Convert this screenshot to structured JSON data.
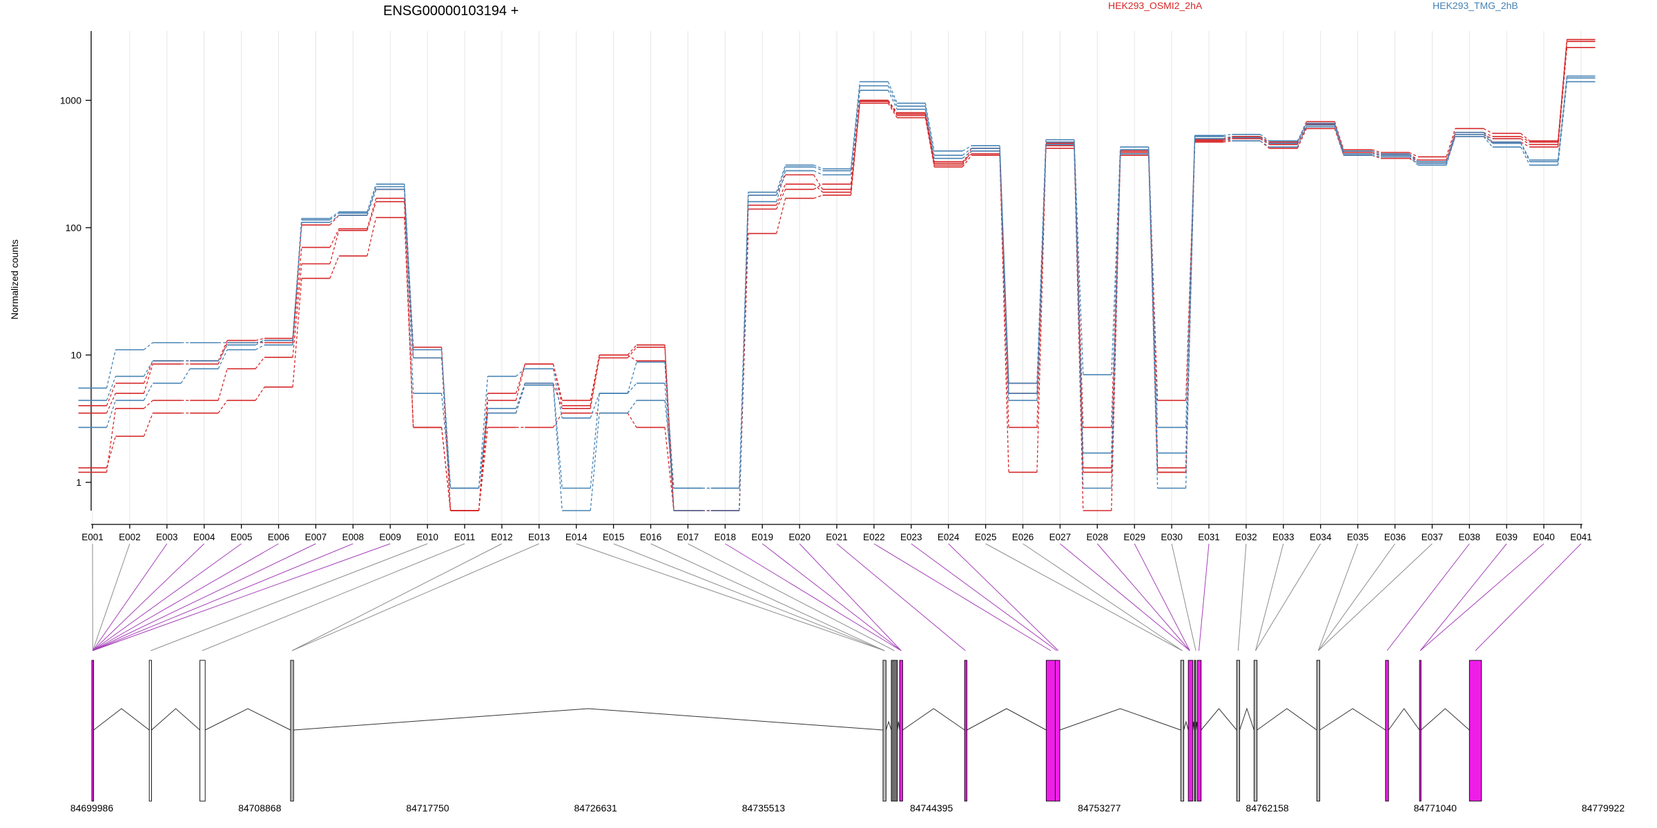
{
  "chart_data": {
    "type": "line",
    "title": "ENSG00000103194 +",
    "ylabel": "Normalized counts",
    "yscale": "log",
    "ylim": [
      0.6,
      3500
    ],
    "y_ticks": [
      "1",
      "10",
      "100",
      "1000"
    ],
    "grid": "vertical",
    "legend_position": "top",
    "categories": [
      "E001",
      "E002",
      "E003",
      "E004",
      "E005",
      "E006",
      "E007",
      "E008",
      "E009",
      "E010",
      "E011",
      "E012",
      "E013",
      "E014",
      "E015",
      "E016",
      "E017",
      "E018",
      "E019",
      "E020",
      "E021",
      "E022",
      "E023",
      "E024",
      "E025",
      "E026",
      "E027",
      "E028",
      "E029",
      "E030",
      "E031",
      "E032",
      "E033",
      "E034",
      "E035",
      "E036",
      "E037",
      "E038",
      "E039",
      "E040",
      "E041"
    ],
    "series": [
      {
        "name": "HEK293_OSMI2_2hA",
        "color": "#d62728",
        "group": "OSMI2",
        "values": [
          1.3,
          2.3,
          3.5,
          3.5,
          4.4,
          5.6,
          40,
          60,
          120,
          2.7,
          0.6,
          2.7,
          2.7,
          3.5,
          3.5,
          2.7,
          0.6,
          0.6,
          90,
          170,
          180,
          950,
          730,
          300,
          370,
          1.2,
          420,
          0.6,
          370,
          1.2,
          470,
          480,
          420,
          600,
          370,
          350,
          320,
          520,
          470,
          430,
          2600
        ]
      },
      {
        "name": "",
        "color": "#d62728",
        "group": "OSMI2",
        "values": [
          1.2,
          3.8,
          4.4,
          4.4,
          7.8,
          9.6,
          52,
          95,
          160,
          2.7,
          0.6,
          3.5,
          6,
          3.8,
          9.5,
          11.5,
          0.6,
          0.6,
          140,
          200,
          220,
          1000,
          800,
          330,
          380,
          2.7,
          440,
          2.7,
          390,
          4.4,
          480,
          500,
          450,
          620,
          390,
          370,
          330,
          540,
          500,
          450,
          2900
        ]
      },
      {
        "name": "",
        "color": "#d62728",
        "group": "OSMI2",
        "values": [
          3.5,
          5,
          8.5,
          8.5,
          12.5,
          12.5,
          70,
          98,
          170,
          9.5,
          0.6,
          4.4,
          8.5,
          4.4,
          10,
          9,
          0.6,
          0.6,
          150,
          220,
          190,
          980,
          760,
          310,
          400,
          5,
          460,
          1.3,
          400,
          1.3,
          490,
          510,
          460,
          650,
          400,
          380,
          340,
          560,
          520,
          470,
          3000
        ]
      },
      {
        "name": "",
        "color": "#d62728",
        "group": "OSMI2",
        "values": [
          4,
          6,
          9,
          9,
          13,
          13.5,
          105,
          125,
          200,
          11.5,
          0.6,
          5,
          8.5,
          4,
          10,
          12,
          0.6,
          0.6,
          180,
          260,
          200,
          1000,
          780,
          320,
          420,
          6,
          470,
          1.2,
          410,
          1.2,
          500,
          520,
          470,
          680,
          410,
          390,
          360,
          600,
          550,
          480,
          3000
        ]
      },
      {
        "name": "HEK293_TMG_2hB",
        "color": "#4682b4",
        "group": "TMG",
        "values": [
          2.7,
          4.4,
          6,
          7.8,
          11,
          12,
          110,
          125,
          200,
          5,
          0.9,
          3.5,
          5.8,
          0.6,
          3.5,
          4.4,
          0.9,
          0.9,
          160,
          280,
          260,
          1200,
          850,
          350,
          400,
          4.4,
          450,
          0.9,
          380,
          0.9,
          500,
          480,
          430,
          620,
          370,
          360,
          310,
          520,
          430,
          310,
          1400
        ]
      },
      {
        "name": "",
        "color": "#4682b4",
        "group": "TMG",
        "values": [
          4.4,
          6.8,
          9,
          9,
          12,
          13,
          115,
          130,
          210,
          9.5,
          0.9,
          3.8,
          6,
          0.9,
          5,
          6,
          0.6,
          0.6,
          180,
          300,
          280,
          1300,
          900,
          370,
          420,
          5,
          470,
          1.7,
          410,
          1.7,
          520,
          510,
          460,
          640,
          380,
          370,
          320,
          540,
          460,
          330,
          1500
        ]
      },
      {
        "name": "",
        "color": "#4682b4",
        "group": "TMG",
        "values": [
          5.5,
          11,
          12.5,
          12.5,
          12.5,
          13,
          118,
          133,
          220,
          11,
          0.9,
          6.8,
          7.8,
          3.2,
          5,
          8.8,
          0.9,
          0.9,
          190,
          310,
          290,
          1400,
          950,
          400,
          440,
          6,
          490,
          7,
          430,
          2.7,
          530,
          540,
          480,
          660,
          400,
          380,
          330,
          560,
          470,
          340,
          1550
        ]
      }
    ],
    "gene_model": {
      "x_ticks": [
        "84699986",
        "84708868",
        "84717750",
        "84726631",
        "84735513",
        "84744395",
        "84753277",
        "84762158",
        "84771040",
        "84779922"
      ]
    }
  }
}
